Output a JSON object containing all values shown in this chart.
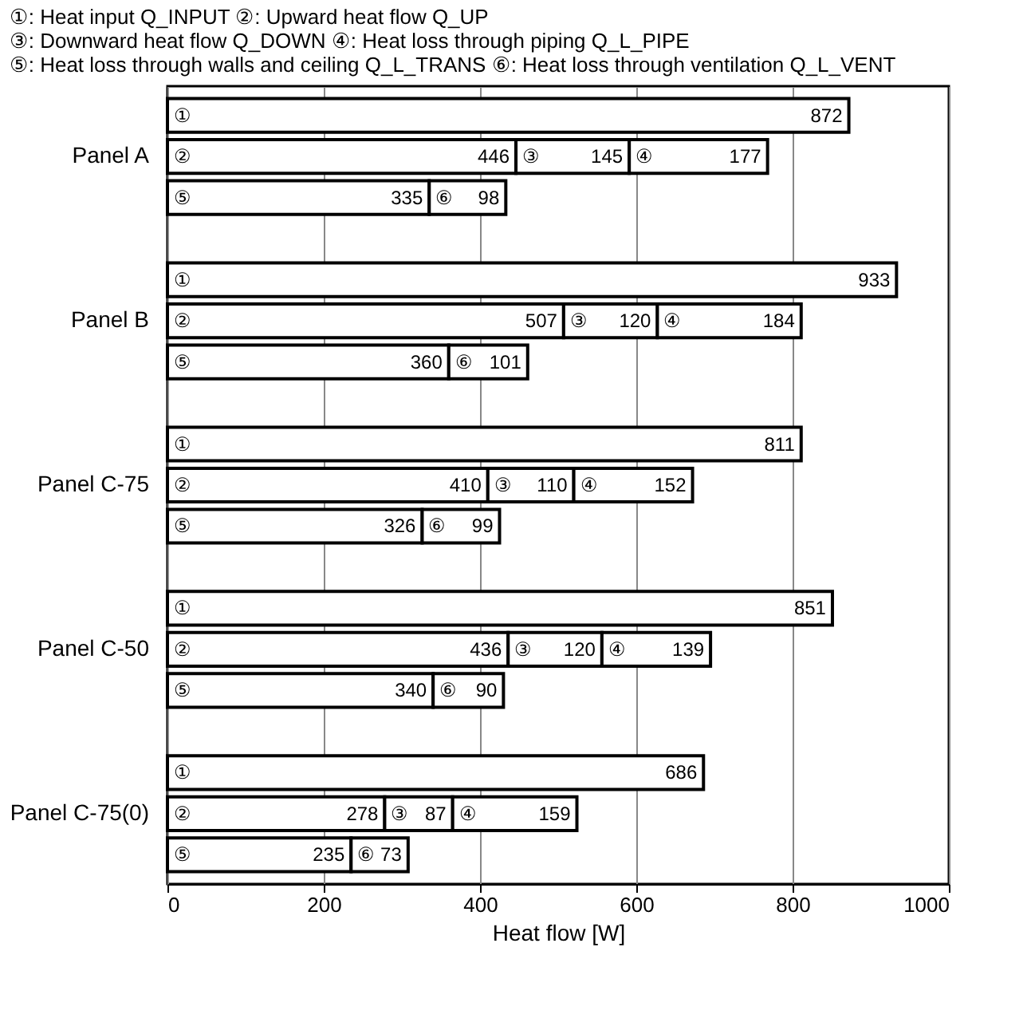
{
  "chart_data": {
    "type": "bar",
    "orientation": "horizontal",
    "stacked": true,
    "annotations": [
      "①: Heat input Q_INPUT",
      "②: Upward heat flow Q_UP",
      "③: Downward heat flow Q_DOWN",
      "④: Heat loss through piping Q_L_PIPE",
      "⑤: Heat loss through walls and ceiling Q_L_TRANS",
      "⑥: Heat loss through ventilation Q_L_VENT"
    ],
    "categories": [
      null,
      "Panel A",
      null,
      null,
      null,
      "Panel B",
      null,
      null,
      null,
      "Panel C-75",
      null,
      null,
      null,
      "Panel C-50",
      null,
      null,
      null,
      "Panel C-75(0)",
      null
    ],
    "series": [
      {
        "name": "①",
        "color": "#ffffff",
        "values": [
          872,
          null,
          null,
          null,
          933,
          null,
          null,
          null,
          811,
          null,
          null,
          null,
          851,
          null,
          null,
          null,
          686,
          null,
          null
        ]
      },
      {
        "name": "②",
        "color": "#ffffff",
        "values": [
          null,
          446,
          null,
          null,
          null,
          507,
          null,
          null,
          null,
          410,
          null,
          null,
          null,
          436,
          null,
          null,
          null,
          278,
          null
        ]
      },
      {
        "name": "③",
        "color": "#ffffff",
        "values": [
          null,
          145,
          null,
          null,
          null,
          120,
          null,
          null,
          null,
          110,
          null,
          null,
          null,
          120,
          null,
          null,
          null,
          87,
          null
        ]
      },
      {
        "name": "④",
        "color": "#ffffff",
        "values": [
          null,
          177,
          null,
          null,
          null,
          184,
          null,
          null,
          null,
          152,
          null,
          null,
          null,
          139,
          null,
          null,
          null,
          159,
          null
        ]
      },
      {
        "name": "⑤",
        "color": "#ffffff",
        "values": [
          null,
          null,
          335,
          null,
          null,
          null,
          360,
          null,
          null,
          null,
          326,
          null,
          null,
          null,
          340,
          null,
          null,
          null,
          235
        ]
      },
      {
        "name": "⑥",
        "color": "#ffffff",
        "values": [
          null,
          null,
          98,
          null,
          null,
          null,
          101,
          null,
          null,
          null,
          99,
          null,
          null,
          null,
          90,
          null,
          null,
          null,
          73
        ]
      }
    ],
    "xlabel": "Heat flow [W]",
    "xlim": [
      0,
      1000
    ],
    "xticks": [
      0,
      200,
      400,
      600,
      800,
      1000
    ],
    "grid": "x",
    "data_labels": true,
    "legend": false
  }
}
